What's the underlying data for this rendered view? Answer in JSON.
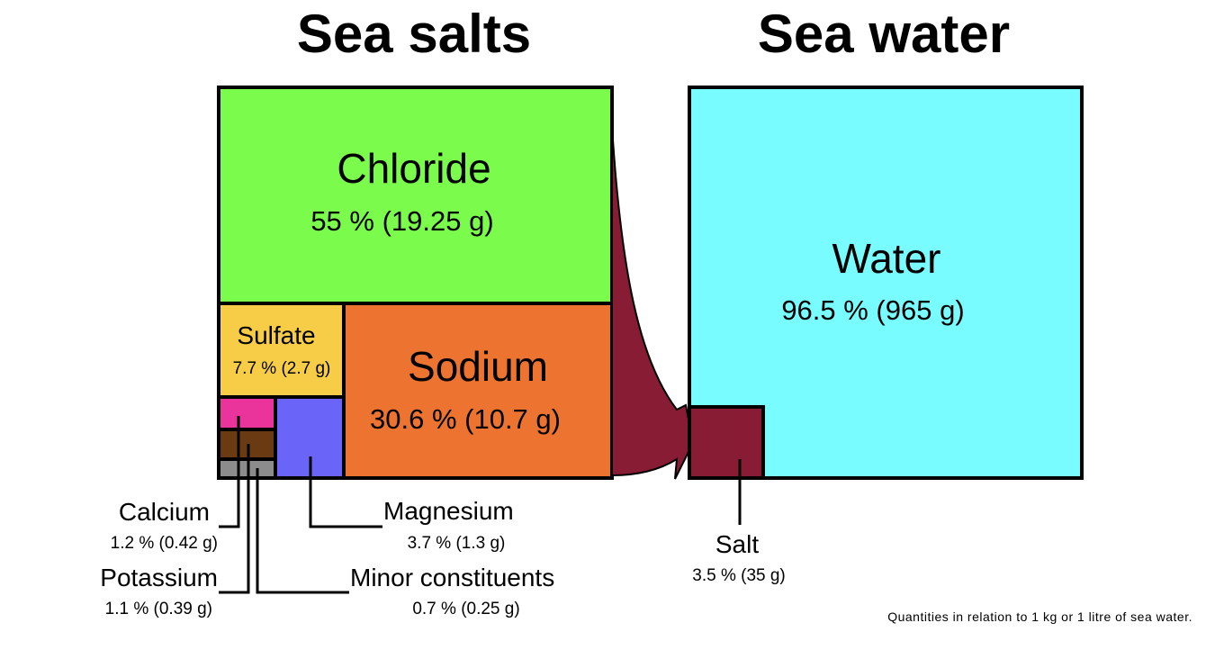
{
  "titles": {
    "left": "Sea salts",
    "right": "Sea water"
  },
  "chart_data": {
    "type": "treemap",
    "groups": [
      {
        "title": "Sea salts",
        "items": [
          {
            "label": "Chloride",
            "value_text": "55 % (19.25 g)",
            "percent": 55,
            "grams": 19.25,
            "color": "#7bfc4d"
          },
          {
            "label": "Sodium",
            "value_text": "30.6 % (10.7 g)",
            "percent": 30.6,
            "grams": 10.7,
            "color": "#ec7330"
          },
          {
            "label": "Sulfate",
            "value_text": "7.7 % (2.7 g)",
            "percent": 7.7,
            "grams": 2.7,
            "color": "#f7cc47"
          },
          {
            "label": "Magnesium",
            "value_text": "3.7 % (1.3 g)",
            "percent": 3.7,
            "grams": 1.3,
            "color": "#6a64f8"
          },
          {
            "label": "Calcium",
            "value_text": "1.2 % (0.42 g)",
            "percent": 1.2,
            "grams": 0.42,
            "color": "#ea349c"
          },
          {
            "label": "Potassium",
            "value_text": "1.1 % (0.39 g)",
            "percent": 1.1,
            "grams": 0.39,
            "color": "#6a3b13"
          },
          {
            "label": "Minor constituents",
            "value_text": "0.7 % (0.25 g)",
            "percent": 0.7,
            "grams": 0.25,
            "color": "#8c8c8c"
          }
        ]
      },
      {
        "title": "Sea water",
        "items": [
          {
            "label": "Water",
            "value_text": "96.5 % (965 g)",
            "percent": 96.5,
            "grams": 965,
            "color": "#78fcff"
          },
          {
            "label": "Salt",
            "value_text": "3.5 % (35 g)",
            "percent": 3.5,
            "grams": 35,
            "color": "#881c34"
          }
        ]
      }
    ]
  },
  "note": "Quantities in relation to 1 kg or 1 litre of sea water."
}
